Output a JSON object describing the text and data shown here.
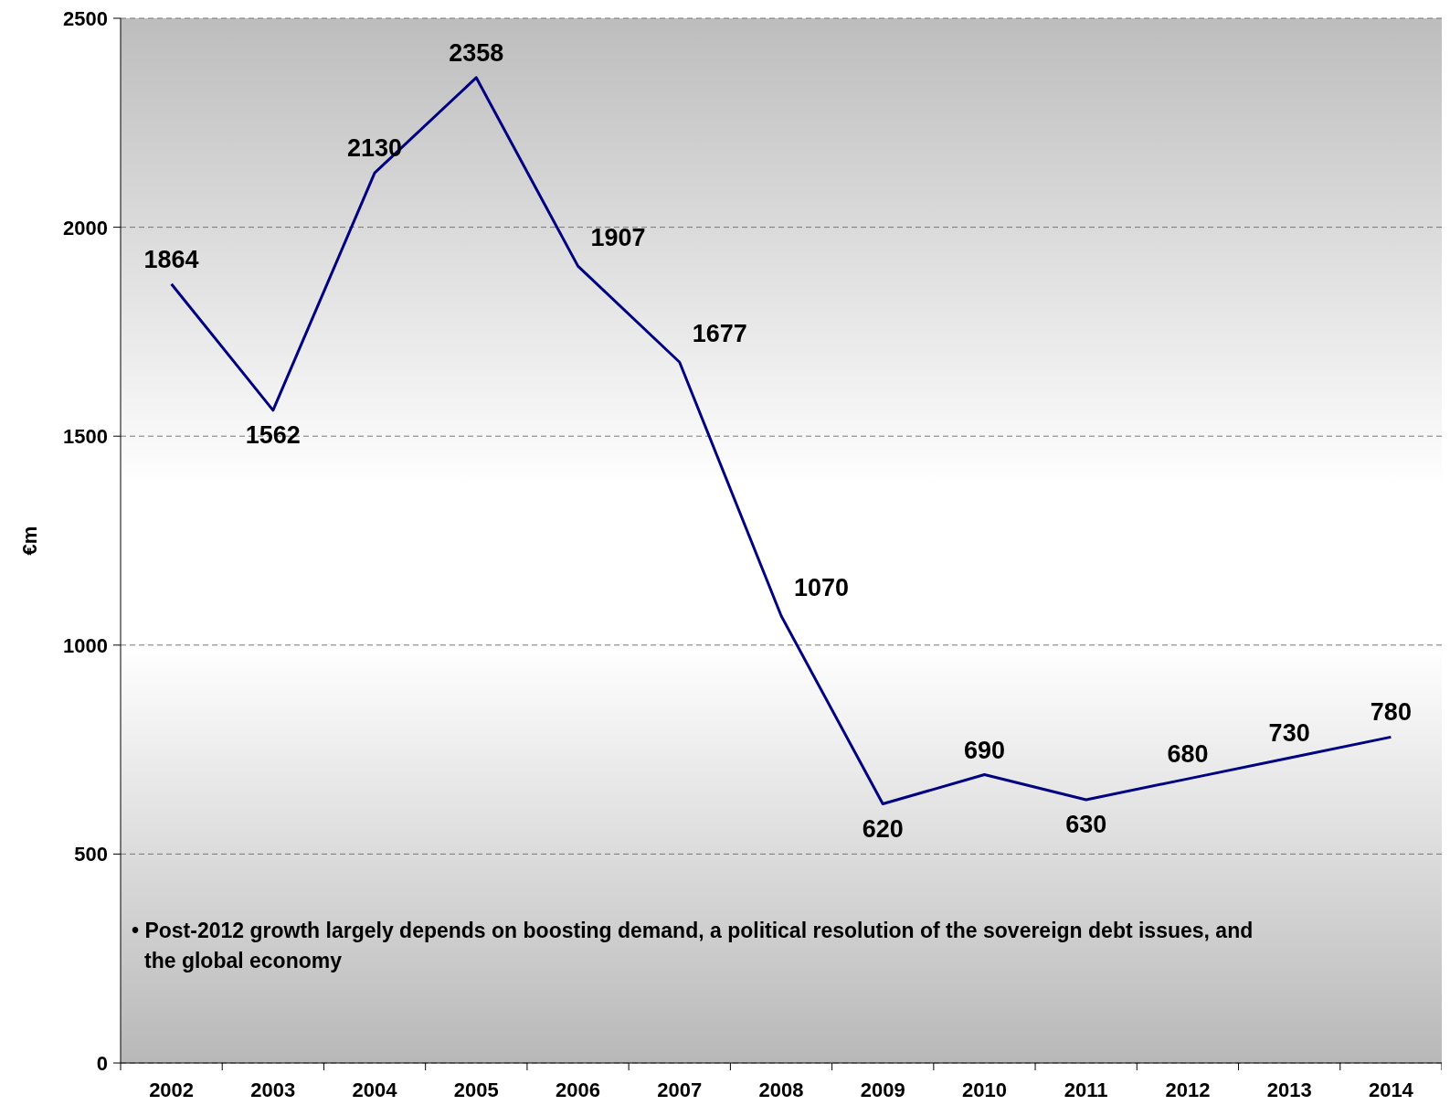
{
  "chart_data": {
    "type": "line",
    "ylabel": "€m",
    "categories": [
      "2002",
      "2003",
      "2004",
      "2005",
      "2006",
      "2007",
      "2008",
      "2009",
      "2010",
      "2011",
      "2012",
      "2013",
      "2014"
    ],
    "series": [
      {
        "color": "#000080",
        "values": [
          1864,
          1562,
          2130,
          2358,
          1907,
          1677,
          1070,
          620,
          690,
          630,
          680,
          730,
          780
        ]
      }
    ],
    "ylim": [
      0,
      2500
    ],
    "yticks": [
      0,
      500,
      1000,
      1500,
      2000,
      2500
    ],
    "grid": "y",
    "data_labels": true,
    "marker": "none",
    "line_style": "solid",
    "annotations": [
      "• Post-2012 growth largely depends on boosting demand, a political resolution of the sovereign debt issues, and the global economy"
    ]
  }
}
